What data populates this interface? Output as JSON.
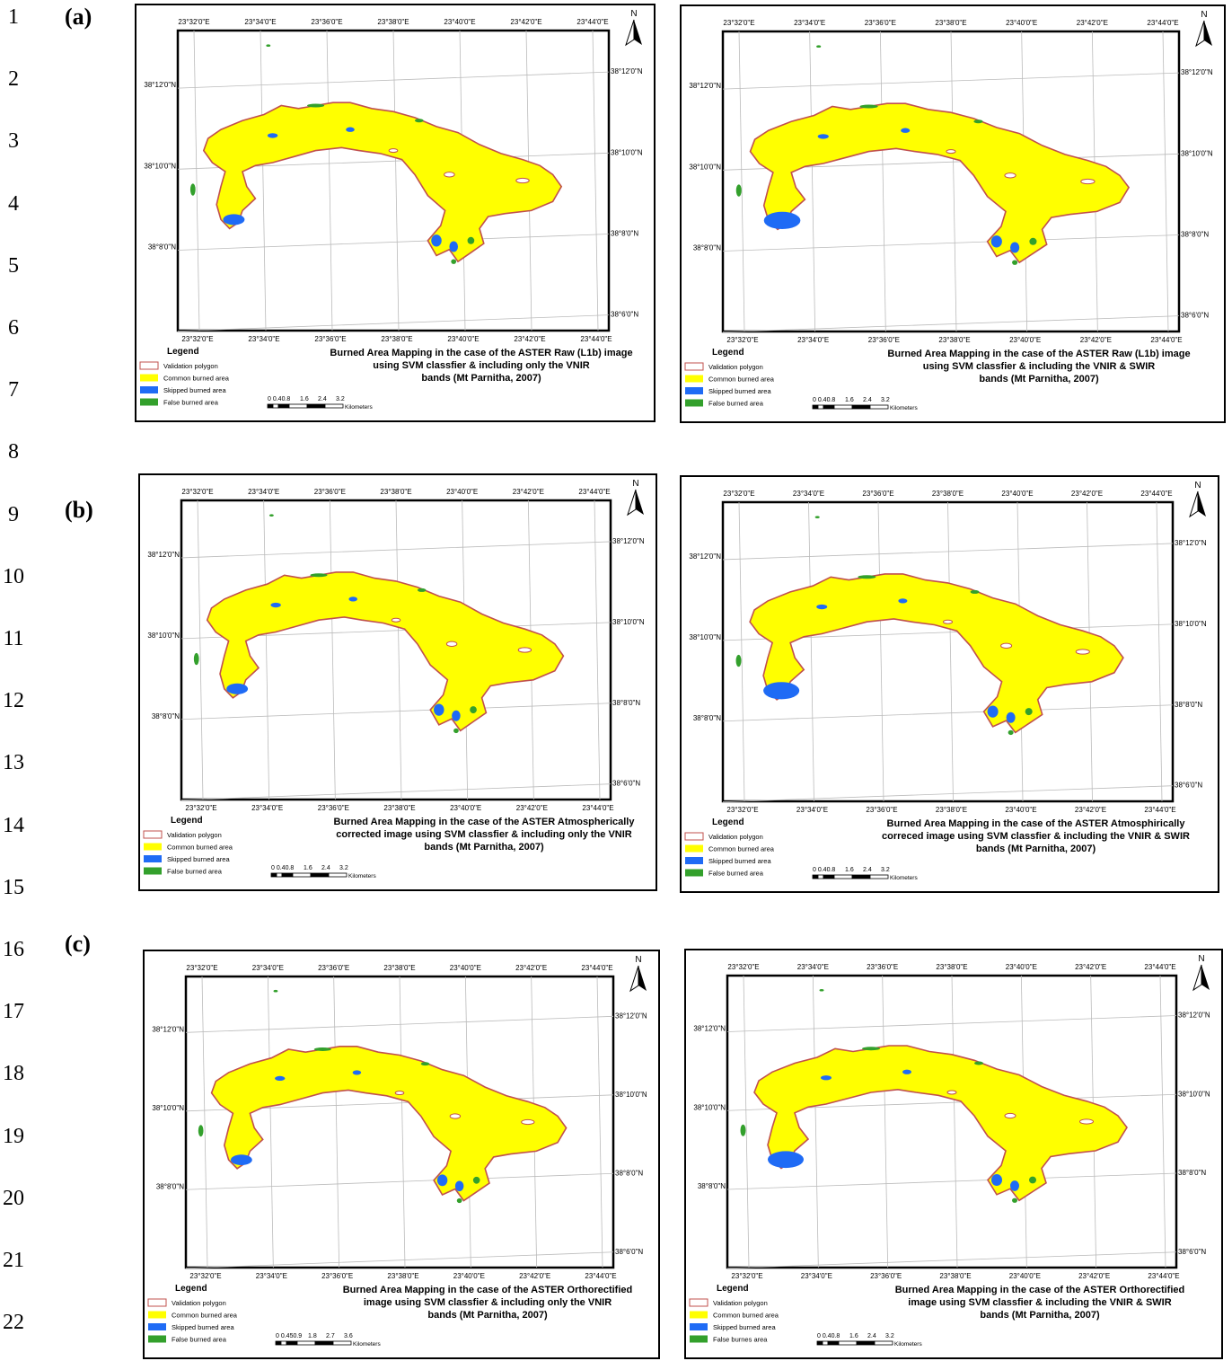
{
  "line_numbers": [
    "1",
    "2",
    "3",
    "4",
    "5",
    "6",
    "7",
    "8",
    "9",
    "10",
    "11",
    "12",
    "13",
    "14",
    "15",
    "16",
    "17",
    "18",
    "19",
    "20",
    "21",
    "22"
  ],
  "row_labels": [
    "(a)",
    "(b)",
    "(c)"
  ],
  "map_labels": {
    "north": "N",
    "legend_title": "Legend",
    "scale_units": "Kilometers",
    "top_lon_ticks": [
      "23°32'0\"E",
      "23°34'0\"E",
      "23°36'0\"E",
      "23°38'0\"E",
      "23°40'0\"E",
      "23°42'0\"E",
      "23°44'0\"E"
    ],
    "bottom_lon_ticks": [
      "23°32'0\"E",
      "23°34'0\"E",
      "23°36'0\"E",
      "23°38'0\"E",
      "23°40'0\"E",
      "23°42'0\"E",
      "23°44'0\"E"
    ],
    "left_lat_ticks": [
      "38°12'0\"N",
      "38°10'0\"N",
      "38°8'0\"N"
    ],
    "right_lat_ticks": [
      "38°12'0\"N",
      "38°10'0\"N",
      "38°8'0\"N",
      "38°6'0\"N"
    ]
  },
  "legend_colors": {
    "validation": "#c0504d",
    "common": "#ffff00",
    "skipped": "#1f6bf5",
    "false": "#33a02c"
  },
  "panels": [
    {
      "legend_items": [
        "Validation polygon",
        "Common burned area",
        "Skipped burned area",
        "False burned area"
      ],
      "scale_ticks": [
        "0 0.40.8",
        "1.6",
        "2.4",
        "3.2"
      ],
      "caption": [
        "Burned Area Mapping in the case of the ASTER Raw (L1b) image",
        "using SVM classfier & including only the VNIR",
        "bands (Mt Parnitha, 2007)"
      ]
    },
    {
      "legend_items": [
        "Validation polygon",
        "Common burned area",
        "Skipped burned area",
        "False burned area"
      ],
      "scale_ticks": [
        "0 0.40.8",
        "1.6",
        "2.4",
        "3.2"
      ],
      "caption": [
        "Burned Area Mapping in the case of the ASTER Raw (L1b) image",
        "using SVM classfier & including the VNIR & SWIR",
        "bands (Mt Parnitha, 2007)"
      ]
    },
    {
      "legend_items": [
        "Validation polygon",
        "Common burned area",
        "Skipped burned area",
        "False burned area"
      ],
      "scale_ticks": [
        "0 0.40.8",
        "1.6",
        "2.4",
        "3.2"
      ],
      "caption": [
        "Burned Area Mapping in the case of the ASTER Atmospherically",
        "corrected image using SVM classfier & including only the VNIR",
        "bands (Mt Parnitha, 2007)"
      ]
    },
    {
      "legend_items": [
        "Validation polygon",
        "Common burned area",
        "Skipped burned area",
        "False burned area"
      ],
      "scale_ticks": [
        "0 0.40.8",
        "1.6",
        "2.4",
        "3.2"
      ],
      "caption": [
        "Burned Area Mapping in the case of the ASTER Atmosphirically",
        "correced image using SVM classfier & including the VNIR & SWIR",
        "bands (Mt Parnitha, 2007)"
      ]
    },
    {
      "legend_items": [
        "Validation polygon",
        "Common burned area",
        "Skipped burned area",
        "False burned area"
      ],
      "scale_ticks": [
        "0 0.450.9",
        "1.8",
        "2.7",
        "3.6"
      ],
      "caption": [
        "Burned Area Mapping in the case of the ASTER Orthorectified",
        "image using SVM classfier & including only the VNIR",
        "bands (Mt Parnitha, 2007)"
      ]
    },
    {
      "legend_items": [
        "Validation polygon",
        "Common burned area",
        "Skipped burned area",
        "False burnes area"
      ],
      "scale_ticks": [
        "0 0.40.8",
        "1.6",
        "2.4",
        "3.2"
      ],
      "caption": [
        "Burned Area Mapping in the case of the ASTER Orthorectified",
        "image using SVM classfier & including the VNIR & SWIR",
        "bands (Mt Parnitha, 2007)"
      ]
    }
  ]
}
